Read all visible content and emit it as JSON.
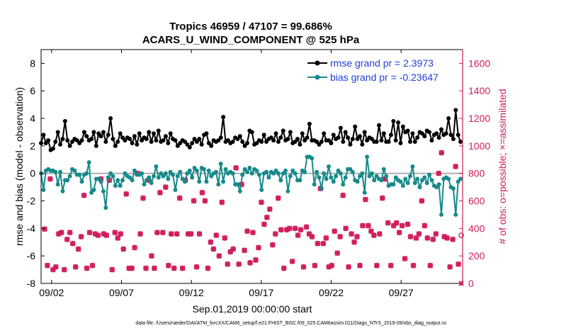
{
  "chart_data": {
    "type": "line",
    "title_line1": "Tropics 46959 / 47107 = 99.686%",
    "title_line2": "ACARS_U_WIND_COMPONENT @ 525 hPa",
    "ylabel": "rmse and bias (model - observation)",
    "ylabel_right": "# of obs: o=possible; ×=assimilated",
    "xlabel": "Sep.01,2019 00:00:00 start",
    "footer": "data file: /Users/raeder/DAI/ATM_forcXX/CAM6_setup/f.e21.FHIST_BGC.f09_025.CAM6assim.011/Diags_NTrS_2019-09/obs_diag_output.nc",
    "xlim": [
      1.25,
      31.4
    ],
    "ylim": [
      -8,
      9
    ],
    "ylim_right": [
      0,
      1700
    ],
    "x_ticks": [
      2,
      7,
      12,
      17,
      22,
      27
    ],
    "x_tick_labels": [
      "09/02",
      "09/07",
      "09/12",
      "09/17",
      "09/22",
      "09/27"
    ],
    "y_ticks": [
      -8,
      -6,
      -4,
      -2,
      0,
      2,
      4,
      6,
      8
    ],
    "y_tick_labels": [
      "-8",
      "-6",
      "-4",
      "-2",
      "0",
      "2",
      "4",
      "6",
      "8"
    ],
    "y_ticks_right": [
      0,
      200,
      400,
      600,
      800,
      1000,
      1200,
      1400,
      1600
    ],
    "y_tick_labels_right": [
      "0",
      "200",
      "400",
      "600",
      "800",
      "1000",
      "1200",
      "1400",
      "1600"
    ],
    "colors": {
      "rmse": "#000000",
      "bias": "#178a8a",
      "obs": "#d01c5b",
      "zero_line": "#b0b0b0",
      "legend_text": "#1f3fd8"
    },
    "series": [
      {
        "name": "rmse grand pr = 2.3973",
        "color": "#000000",
        "axis": "left",
        "values": [
          2.2,
          2.8,
          2.2,
          2.4,
          1.7,
          1.8,
          2.3,
          3.0,
          2.1,
          2.5,
          3.8,
          2.4,
          2.0,
          2.3,
          2.5,
          2.4,
          2.2,
          2.4,
          3.0,
          2.7,
          2.4,
          2.5,
          3.0,
          2.0,
          2.9,
          2.7,
          3.0,
          2.3,
          2.8,
          4.0,
          2.5,
          2.0,
          2.3,
          2.9,
          2.6,
          2.4,
          2.6,
          2.5,
          2.2,
          2.7,
          2.1,
          2.9,
          2.4,
          2.6,
          2.5,
          3.0,
          2.3,
          2.9,
          2.4,
          3.1,
          2.3,
          2.4,
          2.7,
          2.2,
          2.9,
          2.5,
          2.4,
          2.0,
          2.2,
          2.4,
          2.3,
          2.1,
          1.9,
          2.2,
          2.5,
          2.3,
          2.5,
          2.1,
          2.8,
          2.9,
          2.2,
          2.0,
          2.4,
          2.3,
          2.4,
          2.6,
          4.1,
          2.3,
          2.4,
          2.2,
          2.3,
          2.6,
          2.5,
          2.7,
          2.3,
          2.0,
          2.2,
          3.1,
          3.0,
          2.1,
          2.2,
          2.4,
          2.3,
          2.8,
          2.3,
          2.5,
          2.6,
          2.4,
          2.9,
          2.3,
          2.6,
          3.1,
          2.4,
          2.5,
          3.0,
          2.2,
          2.3,
          2.5,
          2.1,
          2.9,
          2.4,
          2.6,
          3.6,
          2.4,
          2.4,
          2.3,
          2.1,
          2.3,
          2.9,
          2.4,
          2.4,
          2.2,
          2.8,
          2.5,
          2.6,
          3.3,
          2.3,
          3.0,
          2.6,
          2.1,
          2.5,
          3.4,
          2.5,
          2.7,
          2.1,
          3.0,
          2.4,
          2.6,
          2.5,
          2.3,
          2.3,
          3.5,
          2.4,
          2.9,
          2.3,
          2.3,
          2.8,
          3.8,
          2.4,
          3.7,
          2.2,
          3.4,
          3.0,
          3.1,
          2.3,
          2.9,
          2.3,
          2.6,
          3.0,
          2.9,
          2.7,
          3.1,
          3.0,
          2.4,
          2.8,
          2.9,
          2.6,
          3.2,
          2.8,
          2.9,
          4.0,
          2.8,
          2.5,
          4.6,
          2.8,
          2.3
        ]
      },
      {
        "name": "bias grand pr = -0.23647",
        "color": "#178a8a",
        "axis": "left",
        "values": [
          0.0,
          -1.2,
          0.2,
          0.3,
          0.2,
          0.2,
          0.1,
          -0.8,
          0.1,
          -1.3,
          -0.5,
          -0.5,
          -0.2,
          0.3,
          0.2,
          -0.1,
          -0.1,
          -0.6,
          -0.1,
          0.0,
          0.8,
          -1.4,
          -1.2,
          -0.4,
          -0.4,
          -0.6,
          -1.3,
          -2.5,
          -0.3,
          0.0,
          -0.2,
          -0.9,
          -0.5,
          -0.9,
          -0.5,
          0.0,
          -0.2,
          -0.3,
          -0.5,
          0.2,
          -0.1,
          -0.1,
          0.0,
          -0.8,
          -0.5,
          -0.3,
          -0.7,
          -0.2,
          0.5,
          -0.3,
          0.0,
          -0.2,
          0.0,
          -0.4,
          0.1,
          -0.1,
          -1.2,
          -0.2,
          0.1,
          -0.4,
          -0.6,
          0.0,
          0.2,
          -0.3,
          0.4,
          0.2,
          -0.6,
          0.4,
          0.3,
          -0.6,
          0.2,
          -0.2,
          0.0,
          0.1,
          -0.8,
          0.7,
          -0.6,
          0.3,
          0.0,
          0.1,
          0.0,
          -0.8,
          -0.8,
          -1.3,
          -0.1,
          0.3,
          0.1,
          0.4,
          0.0,
          0.3,
          0.2,
          -0.1,
          -1.2,
          0.0,
          0.1,
          -0.3,
          0.1,
          0.0,
          0.2,
          0.0,
          -0.5,
          0.0,
          0.2,
          -1.3,
          -0.2,
          0.2,
          0.0,
          -0.5,
          -0.5,
          0.2,
          0.1,
          1.2,
          1.2,
          1.1,
          -0.8,
          0.1,
          -0.3,
          -1.1,
          0.0,
          -0.4,
          0.5,
          -0.3,
          -0.6,
          -0.2,
          0.2,
          0.0,
          -0.8,
          -0.3,
          0.3,
          0.3,
          0.1,
          -0.5,
          -0.6,
          -0.2,
          0.0,
          -1.4,
          1.2,
          -0.2,
          0.0,
          -0.5,
          -0.2,
          -0.4,
          -0.5,
          0.3,
          -0.2,
          -0.9,
          -0.8,
          -0.8,
          -0.3,
          -0.5,
          -0.6,
          -0.9,
          -0.4,
          -0.7,
          -0.2,
          0.5,
          -0.7,
          -0.4,
          -1.0,
          -0.5,
          -0.3,
          -0.7,
          -0.1,
          -0.5,
          -0.9,
          -1.0,
          -0.8,
          -3.0,
          -0.4,
          -0.3,
          -0.4,
          -1.0,
          -1.1,
          -3.0,
          -0.6,
          -0.4
        ]
      },
      {
        "name": "obs possible",
        "color": "#d01c5b",
        "axis": "right",
        "marker": "circle",
        "values": [
          395,
          130,
          760,
          100,
          120,
          360,
          370,
          100,
          320,
          370,
          290,
          120,
          250,
          340,
          640,
          110,
          370,
          130,
          360,
          350,
          760,
          360,
          350,
          750,
          100,
          370,
          330,
          360,
          250,
          650,
          110,
          110,
          260,
          800,
          360,
          620,
          110,
          750,
          200,
          110,
          370,
          660,
          370,
          700,
          130,
          360,
          110,
          360,
          620,
          110,
          750,
          360,
          360,
          600,
          120,
          360,
          660,
          600,
          110,
          300,
          250,
          350,
          200,
          590,
          330,
          140,
          230,
          250,
          840,
          140,
          720,
          240,
          380,
          150,
          370,
          170,
          260,
          590,
          430,
          480,
          540,
          280,
          360,
          620,
          390,
          110,
          390,
          400,
          160,
          400,
          350,
          390,
          120,
          410,
          360,
          340,
          130,
          290,
          690,
          290,
          330,
          120,
          130,
          380,
          220,
          340,
          640,
          400,
          120,
          360,
          300,
          340,
          130,
          420,
          610,
          420,
          380,
          350,
          130,
          360,
          620,
          760,
          440,
          130,
          420,
          440,
          370,
          420,
          180,
          430,
          340,
          130,
          330,
          360,
          600,
          420,
          330,
          130,
          320,
          360,
          800,
          950,
          340,
          330,
          120,
          320,
          850,
          140,
          350
        ]
      },
      {
        "name": "obs assimilated",
        "color": "#d01c5b",
        "axis": "right",
        "marker": "cross",
        "values": [
          395,
          130,
          760,
          100,
          120,
          360,
          370,
          100,
          320,
          370,
          290,
          120,
          250,
          340,
          640,
          110,
          370,
          130,
          360,
          350,
          760,
          360,
          350,
          750,
          100,
          370,
          330,
          360,
          250,
          650,
          110,
          110,
          260,
          800,
          360,
          620,
          110,
          750,
          200,
          110,
          370,
          660,
          370,
          700,
          130,
          360,
          110,
          360,
          620,
          110,
          750,
          360,
          360,
          600,
          120,
          360,
          660,
          600,
          110,
          300,
          250,
          350,
          200,
          590,
          330,
          140,
          230,
          250,
          840,
          140,
          720,
          240,
          380,
          150,
          370,
          170,
          260,
          590,
          430,
          480,
          540,
          280,
          360,
          620,
          390,
          110,
          390,
          400,
          160,
          400,
          350,
          390,
          120,
          410,
          360,
          340,
          130,
          290,
          690,
          290,
          330,
          120,
          130,
          380,
          220,
          340,
          640,
          400,
          120,
          360,
          300,
          340,
          130,
          420,
          610,
          420,
          380,
          350,
          130,
          360,
          620,
          760,
          440,
          130,
          420,
          440,
          370,
          420,
          180,
          430,
          340,
          130,
          330,
          360,
          600,
          420,
          330,
          130,
          320,
          360,
          800,
          950,
          340,
          330,
          120,
          320,
          850,
          140,
          0
        ]
      }
    ],
    "legend": {
      "placement": "top-right",
      "entries": [
        "rmse grand pr = 2.3973",
        "bias grand pr = -0.23647"
      ]
    }
  }
}
